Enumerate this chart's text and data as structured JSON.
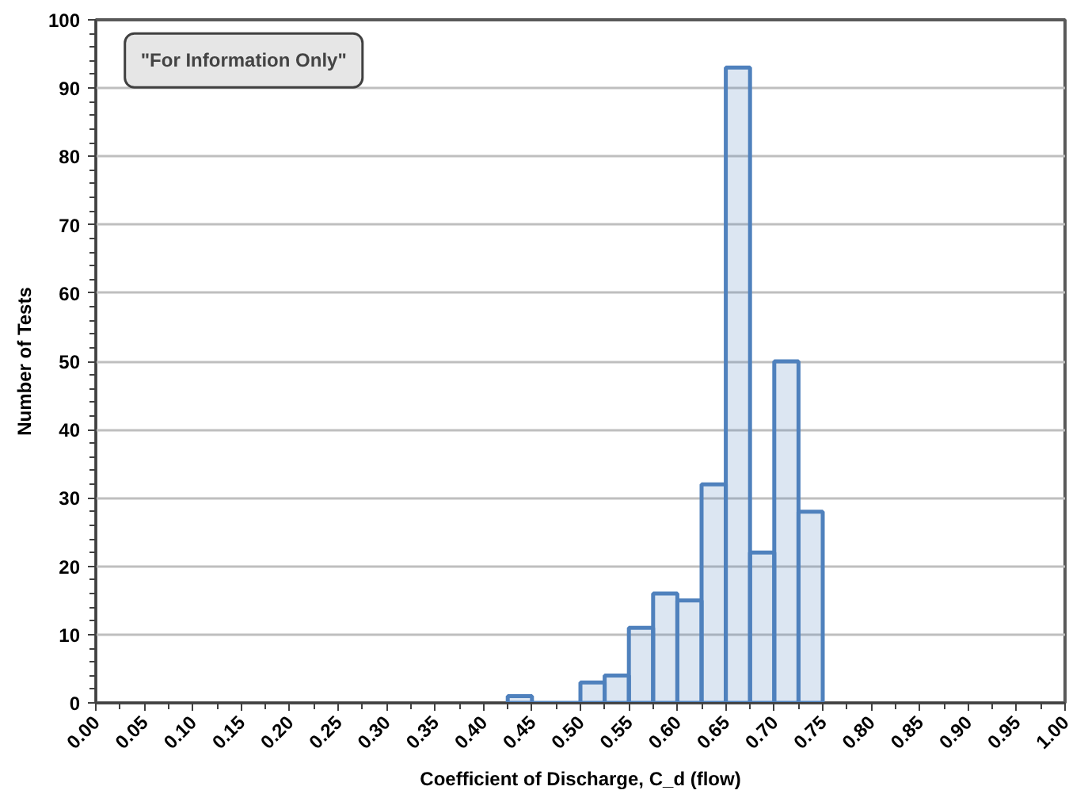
{
  "chart_data": {
    "type": "histogram",
    "xlabel": "Coefficient of Discharge, C_d (flow)",
    "ylabel": "Number of Tests",
    "annotations": [
      "\"For Information Only\""
    ],
    "bins": [
      0.425,
      0.45,
      0.475,
      0.5,
      0.525,
      0.55,
      0.575,
      0.6,
      0.625,
      0.65,
      0.675,
      0.7,
      0.725,
      0.75
    ],
    "values": [
      1,
      0,
      0,
      3,
      4,
      11,
      16,
      15,
      32,
      93,
      22,
      50,
      28
    ],
    "color": "#4f81bd",
    "grid": "y",
    "xlim": [
      0,
      1
    ],
    "ylim": [
      0,
      100
    ],
    "xticks": [
      {
        "value": 0,
        "label": "0.00"
      },
      {
        "value": 0.025,
        "label": null
      },
      {
        "value": 0.05,
        "label": "0.05"
      },
      {
        "value": 0.075,
        "label": null
      },
      {
        "value": 0.1,
        "label": "0.10"
      },
      {
        "value": 0.125,
        "label": null
      },
      {
        "value": 0.15,
        "label": "0.15"
      },
      {
        "value": 0.175,
        "label": null
      },
      {
        "value": 0.2,
        "label": "0.20"
      },
      {
        "value": 0.225,
        "label": null
      },
      {
        "value": 0.25,
        "label": "0.25"
      },
      {
        "value": 0.275,
        "label": null
      },
      {
        "value": 0.3,
        "label": "0.30"
      },
      {
        "value": 0.325,
        "label": null
      },
      {
        "value": 0.35,
        "label": "0.35"
      },
      {
        "value": 0.375,
        "label": null
      },
      {
        "value": 0.4,
        "label": "0.40"
      },
      {
        "value": 0.425,
        "label": null
      },
      {
        "value": 0.45,
        "label": "0.45"
      },
      {
        "value": 0.475,
        "label": null
      },
      {
        "value": 0.5,
        "label": "0.50"
      },
      {
        "value": 0.525,
        "label": null
      },
      {
        "value": 0.55,
        "label": "0.55"
      },
      {
        "value": 0.575,
        "label": null
      },
      {
        "value": 0.6,
        "label": "0.60"
      },
      {
        "value": 0.625,
        "label": null
      },
      {
        "value": 0.65,
        "label": "0.65"
      },
      {
        "value": 0.675,
        "label": null
      },
      {
        "value": 0.7,
        "label": "0.70"
      },
      {
        "value": 0.725,
        "label": null
      },
      {
        "value": 0.75,
        "label": "0.75"
      },
      {
        "value": 0.775,
        "label": null
      },
      {
        "value": 0.8,
        "label": "0.80"
      },
      {
        "value": 0.825,
        "label": null
      },
      {
        "value": 0.85,
        "label": "0.85"
      },
      {
        "value": 0.875,
        "label": null
      },
      {
        "value": 0.9,
        "label": "0.90"
      },
      {
        "value": 0.925,
        "label": null
      },
      {
        "value": 0.95,
        "label": "0.95"
      },
      {
        "value": 0.975,
        "label": null
      },
      {
        "value": 1,
        "label": "1.00"
      }
    ],
    "yticks": [
      0,
      {
        "value": 2,
        "label": null
      },
      {
        "value": 4,
        "label": null
      },
      {
        "value": 6,
        "label": null
      },
      {
        "value": 8,
        "label": null
      },
      10,
      {
        "value": 12,
        "label": null
      },
      {
        "value": 14,
        "label": null
      },
      {
        "value": 16,
        "label": null
      },
      {
        "value": 18,
        "label": null
      },
      20,
      {
        "value": 22,
        "label": null
      },
      {
        "value": 24,
        "label": null
      },
      {
        "value": 26,
        "label": null
      },
      {
        "value": 28,
        "label": null
      },
      30,
      {
        "value": 32,
        "label": null
      },
      {
        "value": 34,
        "label": null
      },
      {
        "value": 36,
        "label": null
      },
      {
        "value": 38,
        "label": null
      },
      40,
      {
        "value": 42,
        "label": null
      },
      {
        "value": 44,
        "label": null
      },
      {
        "value": 46,
        "label": null
      },
      {
        "value": 48,
        "label": null
      },
      50,
      {
        "value": 52,
        "label": null
      },
      {
        "value": 54,
        "label": null
      },
      {
        "value": 56,
        "label": null
      },
      {
        "value": 58,
        "label": null
      },
      60,
      {
        "value": 62,
        "label": null
      },
      {
        "value": 64,
        "label": null
      },
      {
        "value": 66,
        "label": null
      },
      {
        "value": 68,
        "label": null
      },
      70,
      {
        "value": 72,
        "label": null
      },
      {
        "value": 74,
        "label": null
      },
      {
        "value": 76,
        "label": null
      },
      {
        "value": 78,
        "label": null
      },
      80,
      {
        "value": 82,
        "label": null
      },
      {
        "value": 84,
        "label": null
      },
      {
        "value": 86,
        "label": null
      },
      {
        "value": 88,
        "label": null
      },
      90,
      {
        "value": 92,
        "label": null
      },
      {
        "value": 94,
        "label": null
      },
      {
        "value": 96,
        "label": null
      },
      {
        "value": 98,
        "label": null
      },
      100
    ]
  }
}
